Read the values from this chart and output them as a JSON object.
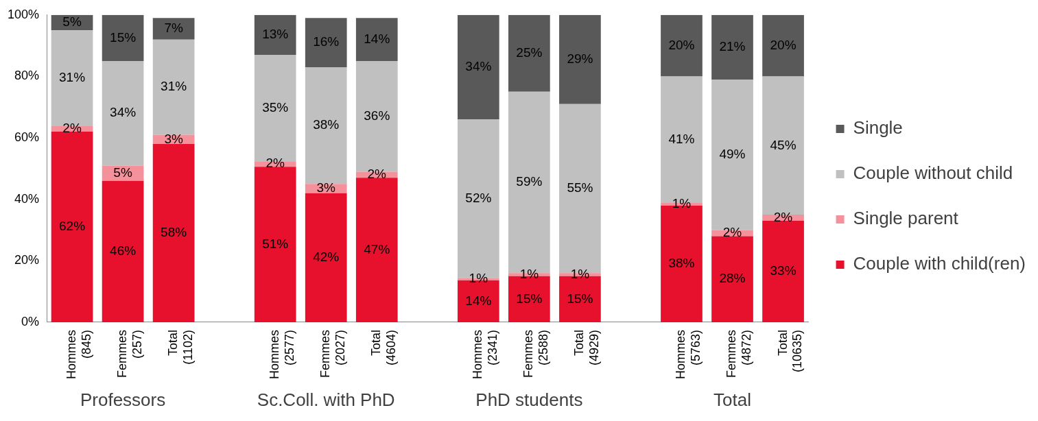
{
  "chart_data": {
    "type": "bar",
    "stacked": true,
    "categories": [
      "Hommes (845)",
      "Femmes (257)",
      "Total (1102)",
      null,
      "Hommes (2577)",
      "Femmes (2027)",
      "Total (4604)",
      null,
      "Hommes (2341)",
      "Femmes (2588)",
      "Total (4929)",
      null,
      "Hommes (5763)",
      "Femmes (4872)",
      "Total (10635)"
    ],
    "series": [
      {
        "name": "Couple with child(ren)",
        "color": "#e8112d",
        "values": [
          62,
          46,
          58,
          null,
          50.6,
          42,
          47,
          null,
          13.6,
          15,
          15,
          null,
          38,
          28,
          33
        ],
        "value_labels": [
          "62%",
          "46%",
          "58%",
          null,
          "51%",
          "42%",
          "47%",
          null,
          "14%",
          "15%",
          "15%",
          null,
          "38%",
          "28%",
          "33%"
        ]
      },
      {
        "name": "Single parent",
        "color": "#f4919b",
        "values": [
          2,
          5,
          3,
          null,
          1.8,
          3,
          2,
          null,
          0.8,
          1,
          1,
          null,
          1,
          2,
          2
        ],
        "value_labels": [
          "2%",
          "5%",
          "3%",
          null,
          "2%",
          "3%",
          "2%",
          null,
          "1%",
          "1%",
          "1%",
          null,
          "1%",
          "2%",
          "2%"
        ]
      },
      {
        "name": "Couple without child",
        "color": "#c0c0c0",
        "values": [
          31,
          34,
          31,
          null,
          34.6,
          38,
          36,
          null,
          51.6,
          59,
          55,
          null,
          41,
          49,
          45
        ],
        "value_labels": [
          "31%",
          "34%",
          "31%",
          null,
          "35%",
          "38%",
          "36%",
          null,
          "52%",
          "59%",
          "55%",
          null,
          "41%",
          "49%",
          "45%"
        ]
      },
      {
        "name": "Single",
        "color": "#595959",
        "values": [
          5,
          15,
          7,
          null,
          13,
          16,
          14,
          null,
          34,
          25,
          29,
          null,
          20,
          21,
          20
        ],
        "value_labels": [
          "5%",
          "15%",
          "7%",
          null,
          "13%",
          "16%",
          "14%",
          null,
          "34%",
          "25%",
          "29%",
          null,
          "20%",
          "21%",
          "20%"
        ]
      }
    ],
    "ylim": [
      0,
      100
    ],
    "yticks": [
      {
        "value": 0,
        "label": "0%"
      },
      {
        "value": 20,
        "label": "20%"
      },
      {
        "value": 40,
        "label": "40%"
      },
      {
        "value": 60,
        "label": "60%"
      },
      {
        "value": 80,
        "label": "80%"
      },
      {
        "value": 100,
        "label": "100%"
      }
    ],
    "grid": false,
    "legend": "right",
    "annotations": [
      "Professors",
      "Sc.Coll. with PhD",
      "PhD students",
      "Total"
    ]
  }
}
